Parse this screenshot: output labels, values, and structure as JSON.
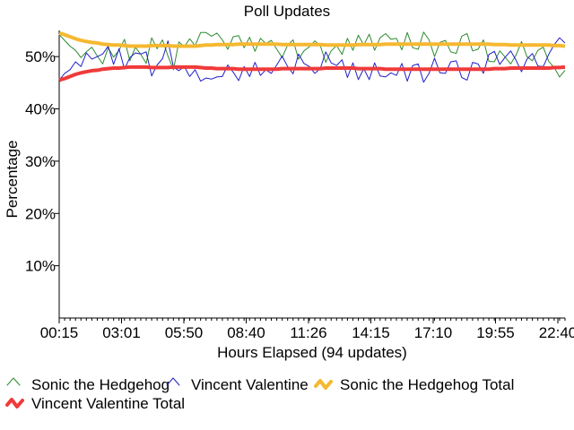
{
  "chart_data": {
    "type": "line",
    "title": "Poll Updates",
    "xlabel": "Hours Elapsed (94 updates)",
    "ylabel": "Percentage",
    "ylim": [
      0,
      55
    ],
    "yticks": [
      10,
      20,
      30,
      40,
      50
    ],
    "ytick_labels": [
      "10%",
      "20%",
      "30%",
      "40%",
      "50%"
    ],
    "xlim": [
      0,
      93
    ],
    "xtick_labels": [
      "00:15",
      "03:01",
      "05:50",
      "08:40",
      "11:26",
      "14:15",
      "17:10",
      "19:55",
      "22:40"
    ],
    "grid": false,
    "legend_position": "bottom",
    "series": [
      {
        "name": "Sonic the Hedgehog",
        "color": "#2e8b2e",
        "values": [
          54.2,
          53.1,
          52.0,
          51.2,
          49.8,
          50.9,
          51.8,
          50.1,
          48.6,
          51.7,
          49.9,
          51.2,
          53.3,
          49.2,
          51.8,
          50.4,
          48.7,
          53.6,
          51.5,
          53.2,
          50.1,
          47.5,
          52.8,
          51.9,
          53.4,
          52.1,
          54.6,
          54.6,
          53.9,
          54.5,
          53.2,
          51.4,
          53.8,
          54.0,
          51.7,
          53.7,
          51.0,
          53.5,
          52.5,
          53.1,
          51.4,
          49.8,
          52.2,
          53.2,
          49.5,
          51.1,
          51.9,
          53.0,
          52.1,
          48.9,
          51.1,
          52.1,
          50.4,
          53.5,
          51.2,
          54.1,
          52.2,
          54.3,
          51.2,
          53.6,
          54.4,
          53.3,
          53.5,
          51.3,
          54.6,
          51.7,
          51.4,
          54.7,
          53.2,
          50.0,
          52.7,
          53.1,
          50.9,
          50.6,
          53.9,
          54.4,
          51.1,
          51.4,
          53.2,
          49.1,
          49.0,
          51.1,
          49.9,
          48.6,
          50.3,
          52.9,
          50.0,
          49.2,
          51.2,
          51.8,
          49.1,
          47.9,
          46.1,
          47.4
        ]
      },
      {
        "name": "Vincent Valentine",
        "color": "#2020c8",
        "values": [
          45.5,
          46.8,
          47.5,
          49.0,
          48.1,
          50.7,
          49.5,
          50.0,
          50.5,
          52.0,
          48.5,
          51.5,
          47.6,
          49.8,
          50.7,
          50.5,
          50.9,
          46.3,
          48.4,
          49.6,
          53.0,
          48.0,
          47.3,
          48.1,
          46.2,
          47.5,
          45.3,
          45.9,
          45.7,
          46.1,
          46.2,
          48.4,
          47.0,
          45.4,
          48.1,
          46.2,
          48.9,
          46.4,
          47.5,
          46.8,
          48.4,
          50.1,
          48.1,
          46.7,
          50.5,
          48.7,
          48.1,
          46.8,
          47.7,
          50.9,
          48.8,
          48.3,
          49.4,
          46.0,
          48.8,
          45.6,
          47.7,
          45.6,
          48.8,
          46.3,
          46.1,
          46.9,
          46.4,
          48.7,
          45.3,
          48.3,
          48.6,
          45.1,
          46.8,
          49.7,
          46.9,
          46.8,
          49.0,
          49.2,
          46.0,
          45.5,
          48.9,
          48.6,
          46.8,
          50.4,
          51.0,
          48.5,
          49.9,
          51.1,
          49.3,
          47.1,
          49.5,
          50.6,
          48.2,
          48.1,
          50.4,
          52.3,
          53.6,
          52.6
        ]
      },
      {
        "name": "Sonic the Hedgehog Total",
        "color": "#f5b830",
        "values": [
          54.5,
          54.2,
          53.8,
          53.4,
          53.1,
          52.9,
          52.7,
          52.6,
          52.4,
          52.3,
          52.2,
          52.2,
          52.1,
          52.0,
          52.0,
          52.0,
          52.0,
          52.1,
          52.1,
          52.1,
          52.1,
          52.0,
          52.0,
          52.0,
          52.0,
          52.0,
          52.1,
          52.2,
          52.2,
          52.3,
          52.3,
          52.3,
          52.3,
          52.4,
          52.4,
          52.4,
          52.4,
          52.4,
          52.4,
          52.4,
          52.4,
          52.3,
          52.3,
          52.3,
          52.3,
          52.3,
          52.3,
          52.3,
          52.3,
          52.2,
          52.2,
          52.2,
          52.2,
          52.2,
          52.2,
          52.3,
          52.3,
          52.3,
          52.3,
          52.3,
          52.4,
          52.4,
          52.4,
          52.4,
          52.4,
          52.4,
          52.4,
          52.4,
          52.4,
          52.4,
          52.4,
          52.4,
          52.4,
          52.4,
          52.4,
          52.4,
          52.4,
          52.4,
          52.4,
          52.4,
          52.3,
          52.3,
          52.3,
          52.2,
          52.2,
          52.2,
          52.2,
          52.2,
          52.2,
          52.2,
          52.2,
          52.1,
          52.1,
          52.0
        ]
      },
      {
        "name": "Vincent Valentine Total",
        "color": "#f03a3a",
        "values": [
          45.5,
          45.8,
          46.2,
          46.6,
          46.9,
          47.1,
          47.3,
          47.4,
          47.6,
          47.7,
          47.8,
          47.8,
          47.9,
          48.0,
          48.0,
          48.0,
          48.0,
          47.9,
          47.9,
          47.9,
          47.9,
          48.0,
          48.0,
          48.0,
          48.0,
          48.0,
          47.9,
          47.8,
          47.8,
          47.7,
          47.7,
          47.7,
          47.7,
          47.6,
          47.6,
          47.6,
          47.6,
          47.6,
          47.6,
          47.6,
          47.6,
          47.7,
          47.7,
          47.7,
          47.7,
          47.7,
          47.7,
          47.7,
          47.7,
          47.8,
          47.8,
          47.8,
          47.8,
          47.8,
          47.8,
          47.7,
          47.7,
          47.7,
          47.7,
          47.7,
          47.6,
          47.6,
          47.6,
          47.6,
          47.6,
          47.6,
          47.6,
          47.6,
          47.6,
          47.6,
          47.6,
          47.6,
          47.6,
          47.6,
          47.6,
          47.6,
          47.6,
          47.6,
          47.6,
          47.6,
          47.7,
          47.7,
          47.7,
          47.8,
          47.8,
          47.8,
          47.8,
          47.8,
          47.8,
          47.8,
          47.8,
          47.9,
          47.9,
          48.0
        ]
      }
    ]
  }
}
